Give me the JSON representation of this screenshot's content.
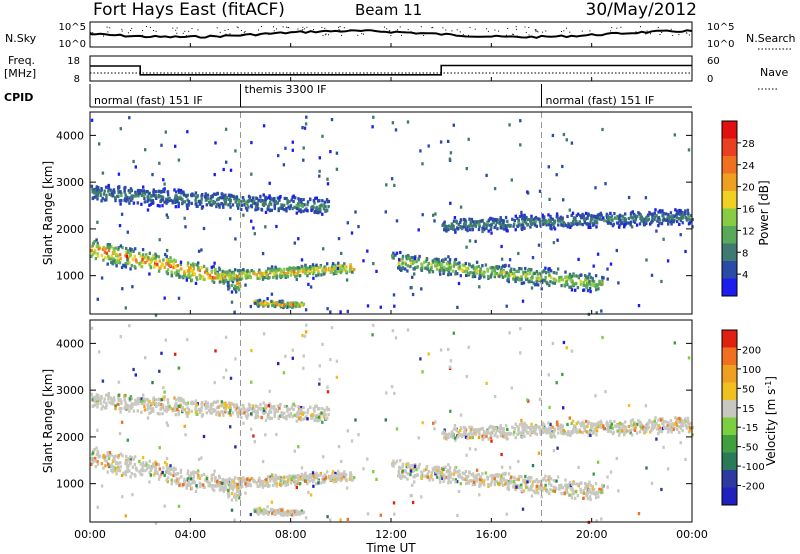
{
  "header": {
    "title": "Fort Hays East (fitACF)",
    "beam": "Beam 11",
    "date": "30/May/2012"
  },
  "panels": {
    "nsky": {
      "left_label": "N.Sky",
      "right_label": "N.Search",
      "tick_top": "10^5",
      "tick_bottom": "10^0",
      "right_tick_top": "10^5",
      "right_tick_bottom": "10^0"
    },
    "freq": {
      "left_label_1": "Freq.",
      "left_label_2": "[MHz]",
      "tick_top": "18",
      "tick_bottom": "8",
      "right_label": "Nave",
      "right_tick_top": "60",
      "right_tick_bottom": "0"
    },
    "cpid": {
      "label": "CPID",
      "modes": [
        {
          "text": "normal (fast) 151 IF",
          "start_hour": 0.0
        },
        {
          "text": "themis 3300 IF",
          "start_hour": 6.0
        },
        {
          "text": "normal (fast) 151 IF",
          "start_hour": 18.0
        }
      ]
    }
  },
  "axes": {
    "x_label": "Time UT",
    "x_ticks": [
      "00:00",
      "04:00",
      "08:00",
      "12:00",
      "16:00",
      "20:00",
      "00:00"
    ],
    "x_range_hours": [
      0,
      24
    ],
    "y_label": "Slant Range [km]",
    "y_ticks": [
      "1000",
      "2000",
      "3000",
      "4000"
    ],
    "y_tick_values": [
      1000,
      2000,
      3000,
      4000
    ],
    "y_range_km": [
      180,
      4500
    ]
  },
  "colorbars": {
    "power": {
      "label": "Power [dB]",
      "ticks": [
        "4",
        "8",
        "12",
        "16",
        "20",
        "24",
        "28"
      ],
      "colors": [
        "#1c1cf0",
        "#2a4aa8",
        "#3f7a72",
        "#5aa85a",
        "#88cc44",
        "#f0d020",
        "#f0a020",
        "#f07020",
        "#e84020",
        "#e01010"
      ]
    },
    "velocity": {
      "label": "Velocity [m s^-1]",
      "ticks": [
        "200",
        "100",
        "50",
        "15",
        "-15",
        "-50",
        "-100",
        "-200"
      ],
      "colors": [
        "#2020c0",
        "#2a3aa0",
        "#2a7a58",
        "#40a040",
        "#7cd040",
        "#c8c8c0",
        "#f0c020",
        "#f0a020",
        "#f07020",
        "#e02010"
      ]
    }
  },
  "chart_data": {
    "type": "heatmap",
    "title": "Fort Hays East (fitACF)",
    "subtitle": "Beam 11",
    "xlabel": "Time UT",
    "ylabel": "Slant Range [km]",
    "x_range": [
      0,
      24
    ],
    "y_range": [
      180,
      4500
    ],
    "frequency_mhz": [
      {
        "start_hour": 0.0,
        "end_hour": 2.0,
        "value": 14.0
      },
      {
        "start_hour": 2.0,
        "end_hour": 14.0,
        "value": 10.5
      },
      {
        "start_hour": 14.0,
        "end_hour": 24.0,
        "value": 14.2
      }
    ],
    "power_echo_bands": [
      {
        "start_hour": 0.0,
        "end_hour": 6.0,
        "range_start_km": 1600,
        "range_end_km": 900,
        "width_km": 450,
        "peak_db": 28
      },
      {
        "start_hour": 5.0,
        "end_hour": 10.5,
        "range_start_km": 1000,
        "range_end_km": 1200,
        "width_km": 250,
        "peak_db": 24
      },
      {
        "start_hour": 6.5,
        "end_hour": 8.5,
        "range_start_km": 450,
        "range_end_km": 400,
        "width_km": 120,
        "peak_db": 28
      },
      {
        "start_hour": 12.0,
        "end_hour": 20.5,
        "range_start_km": 1350,
        "range_end_km": 850,
        "width_km": 350,
        "peak_db": 20
      },
      {
        "start_hour": 0.0,
        "end_hour": 9.5,
        "range_start_km": 2800,
        "range_end_km": 2500,
        "width_km": 350,
        "peak_db": 8
      },
      {
        "start_hour": 14.0,
        "end_hour": 24.0,
        "range_start_km": 2100,
        "range_end_km": 2300,
        "width_km": 300,
        "peak_db": 8
      }
    ]
  }
}
